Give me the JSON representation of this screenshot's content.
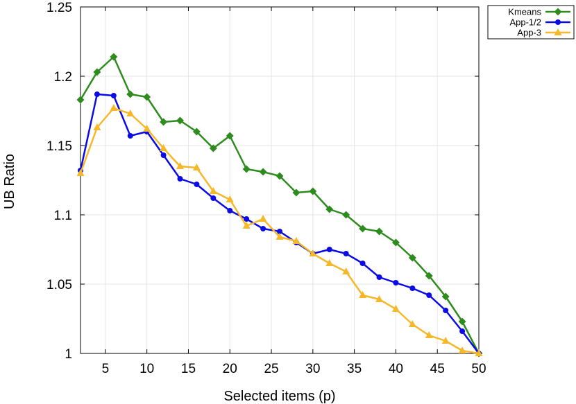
{
  "chart_data": {
    "type": "line",
    "title": "",
    "xlabel": "Selected items (p)",
    "ylabel": "UB Ratio",
    "xlim": [
      2,
      50
    ],
    "ylim": [
      1,
      1.25
    ],
    "xticks": [
      5,
      10,
      15,
      20,
      25,
      30,
      35,
      40,
      45,
      50
    ],
    "yticks": [
      1,
      1.05,
      1.1,
      1.15,
      1.2,
      1.25
    ],
    "xtick_labels": [
      "5",
      "10",
      "15",
      "20",
      "25",
      "30",
      "35",
      "40",
      "45",
      "50"
    ],
    "ytick_labels": [
      "1",
      "1.05",
      "1.1",
      "1.15",
      "1.2",
      "1.25"
    ],
    "grid": true,
    "legend_position": "outside-top-right",
    "x": [
      2,
      4,
      6,
      8,
      10,
      12,
      14,
      16,
      18,
      20,
      22,
      24,
      26,
      28,
      30,
      32,
      34,
      36,
      38,
      40,
      42,
      44,
      46,
      48,
      50
    ],
    "series": [
      {
        "name": "Kmeans",
        "color": "#2e8b1e",
        "marker": "diamond",
        "values": [
          1.183,
          1.203,
          1.214,
          1.187,
          1.185,
          1.167,
          1.168,
          1.16,
          1.148,
          1.157,
          1.133,
          1.131,
          1.128,
          1.116,
          1.117,
          1.104,
          1.1,
          1.09,
          1.088,
          1.08,
          1.069,
          1.056,
          1.041,
          1.023,
          1.0
        ]
      },
      {
        "name": "App-1/2",
        "color": "#0b0be6",
        "marker": "circle",
        "values": [
          1.132,
          1.187,
          1.186,
          1.157,
          1.16,
          1.143,
          1.126,
          1.122,
          1.112,
          1.103,
          1.097,
          1.09,
          1.088,
          1.08,
          1.072,
          1.075,
          1.072,
          1.065,
          1.055,
          1.051,
          1.047,
          1.042,
          1.031,
          1.016,
          1.0
        ]
      },
      {
        "name": "App-3",
        "color": "#f5b82a",
        "marker": "triangle",
        "values": [
          1.13,
          1.163,
          1.177,
          1.173,
          1.162,
          1.148,
          1.135,
          1.134,
          1.117,
          1.111,
          1.092,
          1.097,
          1.084,
          1.081,
          1.072,
          1.065,
          1.059,
          1.042,
          1.039,
          1.032,
          1.021,
          1.013,
          1.009,
          1.002,
          1.0
        ]
      }
    ]
  }
}
